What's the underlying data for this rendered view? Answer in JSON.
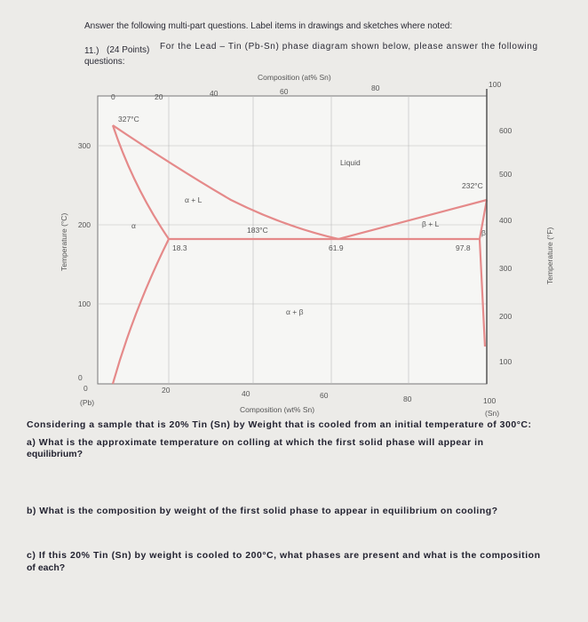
{
  "header": {
    "intro": "Answer the following multi-part questions.  Label items in drawings and sketches where noted:",
    "question_number": "11.)",
    "points": "(24 Points)",
    "prompt_lines": [
      "For the Lead – Tin (Pb-Sn) phase diagram shown below, please answer the following",
      "questions:"
    ]
  },
  "diagram": {
    "top_axis_title": "Composition (at% Sn)",
    "top_ticks": [
      "0",
      "20",
      "40",
      "60",
      "80",
      "100"
    ],
    "left_axis_title": "Temperature (°C)",
    "left_ticks": [
      "300",
      "200",
      "100",
      "0"
    ],
    "right_axis_title": "Temperature (°F)",
    "right_ticks": [
      "600",
      "500",
      "400",
      "300",
      "200",
      "100"
    ],
    "bottom_ticks": [
      "0",
      "20",
      "40",
      "60",
      "80",
      "100"
    ],
    "bottom_axis_title": "Composition (wt% Sn)",
    "left_end": "(Pb)",
    "right_end": "(Sn)",
    "annotations": {
      "pb_melt": "327°C",
      "sn_melt": "232°C",
      "eutectic_temp": "183°C",
      "alpha_max": "18.3",
      "eutectic_comp": "61.9",
      "beta_min": "97.8",
      "liquid": "Liquid",
      "alpha_l": "α + L",
      "beta_l": "β + L",
      "alpha_beta": "α + β",
      "alpha": "α",
      "beta": "β"
    }
  },
  "questions": {
    "context": "Considering a sample that is 20% Tin (Sn) by Weight that is cooled from an initial temperature of 300°C:",
    "a_lines": [
      "a) What is the approximate temperature on colling at which the first solid phase will appear in",
      "equilibrium?"
    ],
    "b": "b) What is the composition by weight of the first solid phase to appear in equilibrium on cooling?",
    "c_lines": [
      "c) If this 20% Tin (Sn) by weight is cooled to 200°C, what phases are present and what is the composition",
      "of each?"
    ]
  }
}
